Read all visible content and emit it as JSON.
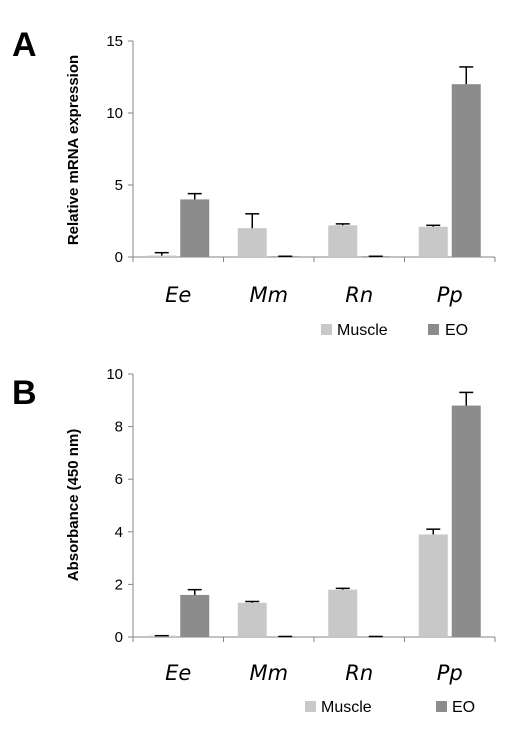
{
  "colors": {
    "muscle": "#c8c8c8",
    "eo": "#8c8c8c",
    "axis": "#868686",
    "error": "#000000"
  },
  "chart_data": [
    {
      "panel": "A",
      "type": "bar",
      "ylabel": "Relative mRNA expression",
      "xlabel": "",
      "ylim": [
        0,
        15
      ],
      "yticks": [
        "0",
        "5",
        "10",
        "15"
      ],
      "categories": [
        "Ee",
        "Mm",
        "Rn",
        "Pp"
      ],
      "series": [
        {
          "name": "Muscle",
          "values": [
            0.1,
            2.0,
            2.2,
            2.1
          ],
          "errors": [
            0.2,
            1.0,
            0.1,
            0.1
          ]
        },
        {
          "name": "EO",
          "values": [
            4.0,
            0.05,
            0.05,
            12.0
          ],
          "errors": [
            0.4,
            0.0,
            0.0,
            1.2
          ]
        }
      ],
      "legend": "bottom-right",
      "grid": false
    },
    {
      "panel": "B",
      "type": "bar",
      "ylabel": "Absorbance (450 nm)",
      "xlabel": "",
      "ylim": [
        0,
        10
      ],
      "yticks": [
        "0",
        "2",
        "4",
        "6",
        "8",
        "10"
      ],
      "categories": [
        "Ee",
        "Mm",
        "Rn",
        "Pp"
      ],
      "series": [
        {
          "name": "Muscle",
          "values": [
            0.05,
            1.3,
            1.8,
            3.9
          ],
          "errors": [
            0.0,
            0.05,
            0.05,
            0.2
          ]
        },
        {
          "name": "EO",
          "values": [
            1.6,
            0.02,
            0.02,
            8.8
          ],
          "errors": [
            0.2,
            0.0,
            0.0,
            0.5
          ]
        }
      ],
      "legend": "bottom-right",
      "grid": false
    }
  ]
}
